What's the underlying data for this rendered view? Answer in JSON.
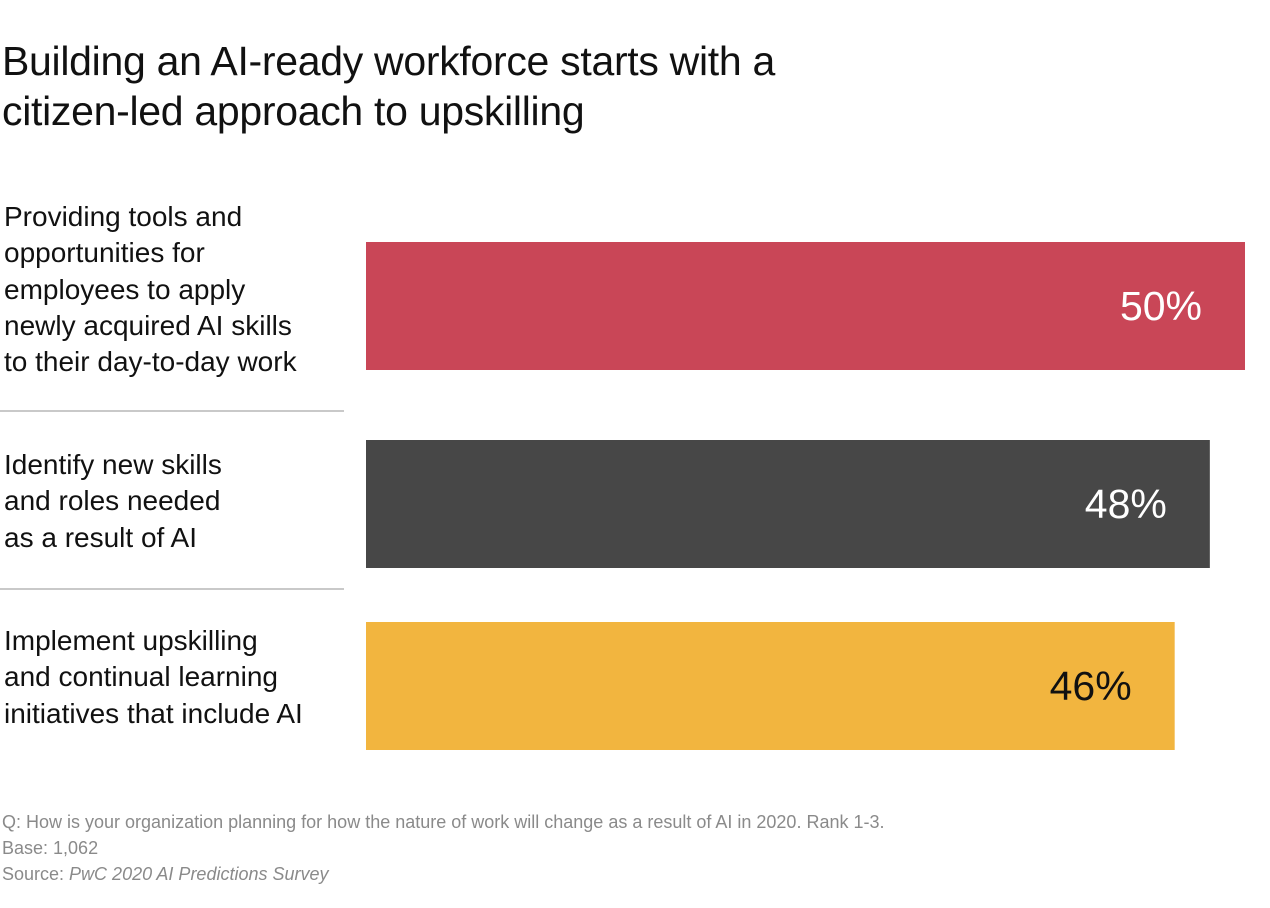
{
  "chart_data": {
    "type": "bar",
    "orientation": "horizontal",
    "title": [
      "Building an AI-ready workforce starts with a",
      "citizen-led approach to upskilling"
    ],
    "categories": [
      [
        "Providing tools and",
        "opportunities for",
        "employees to apply",
        "newly acquired AI skills",
        "to their day-to-day work"
      ],
      [
        "Identify new skills",
        "and roles needed",
        "as a result of AI"
      ],
      [
        "Implement upskilling",
        "and continual learning",
        "initiatives that include AI"
      ]
    ],
    "values": [
      50,
      48,
      46
    ],
    "value_labels": [
      "50%",
      "48%",
      "46%"
    ],
    "unit": "%",
    "colors": [
      "#c94657",
      "#474747",
      "#f2b53f"
    ],
    "label_colors": [
      "#ffffff",
      "#ffffff",
      "#111111"
    ],
    "xlim": [
      0,
      50
    ],
    "grid": false,
    "legend": "none"
  },
  "footnote": {
    "question": "Q: How is your organization planning for how the nature of work will change as a result of AI in 2020. Rank 1-3.",
    "base": "Base: 1,062",
    "source_prefix": "Source: ",
    "source": "PwC 2020 AI Predictions Survey"
  }
}
